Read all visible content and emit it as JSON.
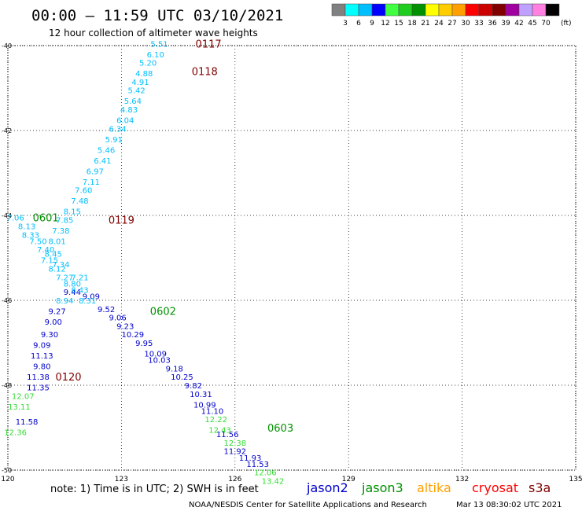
{
  "header": {
    "title": "00:00 – 11:59 UTC 03/10/2021",
    "subtitle": "12 hour collection of altimeter wave heights"
  },
  "colorbar": {
    "colors": [
      "#808080",
      "#00ffff",
      "#00bfff",
      "#0000ff",
      "#40ff40",
      "#20cc20",
      "#009000",
      "#ffff00",
      "#ffcc00",
      "#ffa000",
      "#ff0000",
      "#cc0000",
      "#800000",
      "#a000a0",
      "#c0a0ff",
      "#ff80e0",
      "#000000"
    ],
    "labels": [
      "3",
      "6",
      "9",
      "12",
      "15",
      "18",
      "21",
      "24",
      "27",
      "30",
      "33",
      "36",
      "39",
      "42",
      "45",
      "70"
    ],
    "unit": "(ft)"
  },
  "note": "note: 1) Time is in UTC; 2) SWH is in feet",
  "legend": [
    {
      "name": "jason2",
      "color": "#0000cc"
    },
    {
      "name": "jason3",
      "color": "#009000"
    },
    {
      "name": "altika",
      "color": "#ffa000"
    },
    {
      "name": "cryosat",
      "color": "#ff0000"
    },
    {
      "name": "s3a",
      "color": "#800000"
    }
  ],
  "footer": {
    "credit": "NOAA/NESDIS Center for Satellite Applications and Research",
    "timestamp": "Mar 13 08:30:02 UTC 2021"
  },
  "chart_data": {
    "type": "scatter",
    "xlim": [
      120,
      135
    ],
    "ylim": [
      -50,
      -40
    ],
    "xticks": [
      "120",
      "123",
      "126",
      "129",
      "132",
      "135"
    ],
    "yticks": [
      "-40",
      "-42",
      "-44",
      "-46",
      "-48",
      "-50"
    ],
    "grid": true,
    "series": [
      {
        "name": "jason2",
        "color": "#0000cc",
        "points": [
          {
            "lon": 121.7,
            "lat": -45.8,
            "value": "9.44"
          },
          {
            "lon": 122.2,
            "lat": -45.9,
            "value": "9.09"
          },
          {
            "lon": 121.3,
            "lat": -46.25,
            "value": "9.27"
          },
          {
            "lon": 122.6,
            "lat": -46.2,
            "value": "9.52"
          },
          {
            "lon": 122.9,
            "lat": -46.4,
            "value": "9.06"
          },
          {
            "lon": 121.2,
            "lat": -46.5,
            "value": "9.00"
          },
          {
            "lon": 123.1,
            "lat": -46.6,
            "value": "9.23"
          },
          {
            "lon": 121.1,
            "lat": -46.8,
            "value": "9.30"
          },
          {
            "lon": 123.3,
            "lat": -46.8,
            "value": "10.29"
          },
          {
            "lon": 120.9,
            "lat": -47.05,
            "value": "9.09"
          },
          {
            "lon": 123.6,
            "lat": -47.0,
            "value": "9.95"
          },
          {
            "lon": 120.9,
            "lat": -47.3,
            "value": "11.13"
          },
          {
            "lon": 123.9,
            "lat": -47.25,
            "value": "10.09"
          },
          {
            "lon": 124.0,
            "lat": -47.4,
            "value": "10.03"
          },
          {
            "lon": 120.9,
            "lat": -47.55,
            "value": "9.80"
          },
          {
            "lon": 124.4,
            "lat": -47.6,
            "value": "9.18"
          },
          {
            "lon": 120.8,
            "lat": -47.8,
            "value": "11.38"
          },
          {
            "lon": 124.6,
            "lat": -47.8,
            "value": "10.25"
          },
          {
            "lon": 124.9,
            "lat": -48.0,
            "value": "9.82"
          },
          {
            "lon": 120.8,
            "lat": -48.05,
            "value": "11.35"
          },
          {
            "lon": 125.1,
            "lat": -48.2,
            "value": "10.31"
          },
          {
            "lon": 125.2,
            "lat": -48.45,
            "value": "10.99"
          },
          {
            "lon": 125.4,
            "lat": -48.6,
            "value": "11.10"
          },
          {
            "lon": 120.5,
            "lat": -48.85,
            "value": "11.58"
          },
          {
            "lon": 125.8,
            "lat": -49.15,
            "value": "11.56"
          },
          {
            "lon": 126.0,
            "lat": -49.55,
            "value": "11.92"
          },
          {
            "lon": 126.4,
            "lat": -49.7,
            "value": "11.93"
          },
          {
            "lon": 126.6,
            "lat": -49.85,
            "value": "11.53"
          }
        ]
      },
      {
        "name": "jason2-light",
        "color": "#00bfff",
        "points": [
          {
            "lon": 124.0,
            "lat": -39.95,
            "value": "5.51"
          },
          {
            "lon": 123.9,
            "lat": -40.2,
            "value": "6.10"
          },
          {
            "lon": 123.7,
            "lat": -40.4,
            "value": "5.20"
          },
          {
            "lon": 123.6,
            "lat": -40.65,
            "value": "4.88"
          },
          {
            "lon": 123.5,
            "lat": -40.85,
            "value": "4.91"
          },
          {
            "lon": 123.4,
            "lat": -41.05,
            "value": "5.42"
          },
          {
            "lon": 123.3,
            "lat": -41.3,
            "value": "5.64"
          },
          {
            "lon": 123.2,
            "lat": -41.5,
            "value": "4.83"
          },
          {
            "lon": 123.1,
            "lat": -41.75,
            "value": "6.04"
          },
          {
            "lon": 122.9,
            "lat": -41.95,
            "value": "6.34"
          },
          {
            "lon": 122.8,
            "lat": -42.2,
            "value": "5.91"
          },
          {
            "lon": 122.6,
            "lat": -42.45,
            "value": "5.46"
          },
          {
            "lon": 122.5,
            "lat": -42.7,
            "value": "6.41"
          },
          {
            "lon": 122.3,
            "lat": -42.95,
            "value": "6.97"
          },
          {
            "lon": 122.2,
            "lat": -43.2,
            "value": "7.11"
          },
          {
            "lon": 122.0,
            "lat": -43.4,
            "value": "7.60"
          },
          {
            "lon": 121.9,
            "lat": -43.65,
            "value": "7.48"
          },
          {
            "lon": 121.7,
            "lat": -43.9,
            "value": "8.15"
          },
          {
            "lon": 121.5,
            "lat": -44.1,
            "value": "7.85"
          },
          {
            "lon": 120.2,
            "lat": -44.05,
            "value": "7.06"
          },
          {
            "lon": 120.5,
            "lat": -44.25,
            "value": "8.13"
          },
          {
            "lon": 121.4,
            "lat": -44.35,
            "value": "7.38"
          },
          {
            "lon": 120.6,
            "lat": -44.45,
            "value": "8.33"
          },
          {
            "lon": 120.8,
            "lat": -44.6,
            "value": "7.50"
          },
          {
            "lon": 121.3,
            "lat": -44.6,
            "value": "8.01"
          },
          {
            "lon": 121.0,
            "lat": -44.8,
            "value": "7.40"
          },
          {
            "lon": 121.2,
            "lat": -44.9,
            "value": "8.45"
          },
          {
            "lon": 121.1,
            "lat": -45.05,
            "value": "7.15"
          },
          {
            "lon": 121.4,
            "lat": -45.15,
            "value": "7.34"
          },
          {
            "lon": 121.3,
            "lat": -45.25,
            "value": "8.12"
          },
          {
            "lon": 121.5,
            "lat": -45.45,
            "value": "7.27"
          },
          {
            "lon": 121.9,
            "lat": -45.45,
            "value": "7.21"
          },
          {
            "lon": 121.7,
            "lat": -45.6,
            "value": "8.80"
          },
          {
            "lon": 121.9,
            "lat": -45.75,
            "value": "8.43"
          },
          {
            "lon": 121.5,
            "lat": -46.0,
            "value": "8.94"
          },
          {
            "lon": 122.1,
            "lat": -46.0,
            "value": "8.31"
          }
        ]
      },
      {
        "name": "jason3",
        "color": "#33dd33",
        "points": [
          {
            "lon": 120.4,
            "lat": -48.25,
            "value": "12.07"
          },
          {
            "lon": 120.3,
            "lat": -48.5,
            "value": "13.11"
          },
          {
            "lon": 120.2,
            "lat": -49.1,
            "value": "12.36"
          },
          {
            "lon": 125.5,
            "lat": -48.8,
            "value": "12.22"
          },
          {
            "lon": 125.6,
            "lat": -49.05,
            "value": "12.43"
          },
          {
            "lon": 126.0,
            "lat": -49.35,
            "value": "12.38"
          },
          {
            "lon": 126.8,
            "lat": -50.05,
            "value": "12.06"
          },
          {
            "lon": 127.0,
            "lat": -50.25,
            "value": "13.42"
          }
        ]
      }
    ],
    "pass_labels": [
      {
        "text": "0117",
        "color": "#800000",
        "lon": 125.3,
        "lat": -39.95
      },
      {
        "text": "0118",
        "color": "#800000",
        "lon": 125.2,
        "lat": -40.6
      },
      {
        "text": "0119",
        "color": "#800000",
        "lon": 123.0,
        "lat": -44.1
      },
      {
        "text": "0120",
        "color": "#800000",
        "lon": 121.6,
        "lat": -47.8
      },
      {
        "text": "0601",
        "color": "#009000",
        "lon": 121.0,
        "lat": -44.05
      },
      {
        "text": "0602",
        "color": "#009000",
        "lon": 124.1,
        "lat": -46.25
      },
      {
        "text": "0603",
        "color": "#009000",
        "lon": 127.2,
        "lat": -49.0
      }
    ]
  }
}
